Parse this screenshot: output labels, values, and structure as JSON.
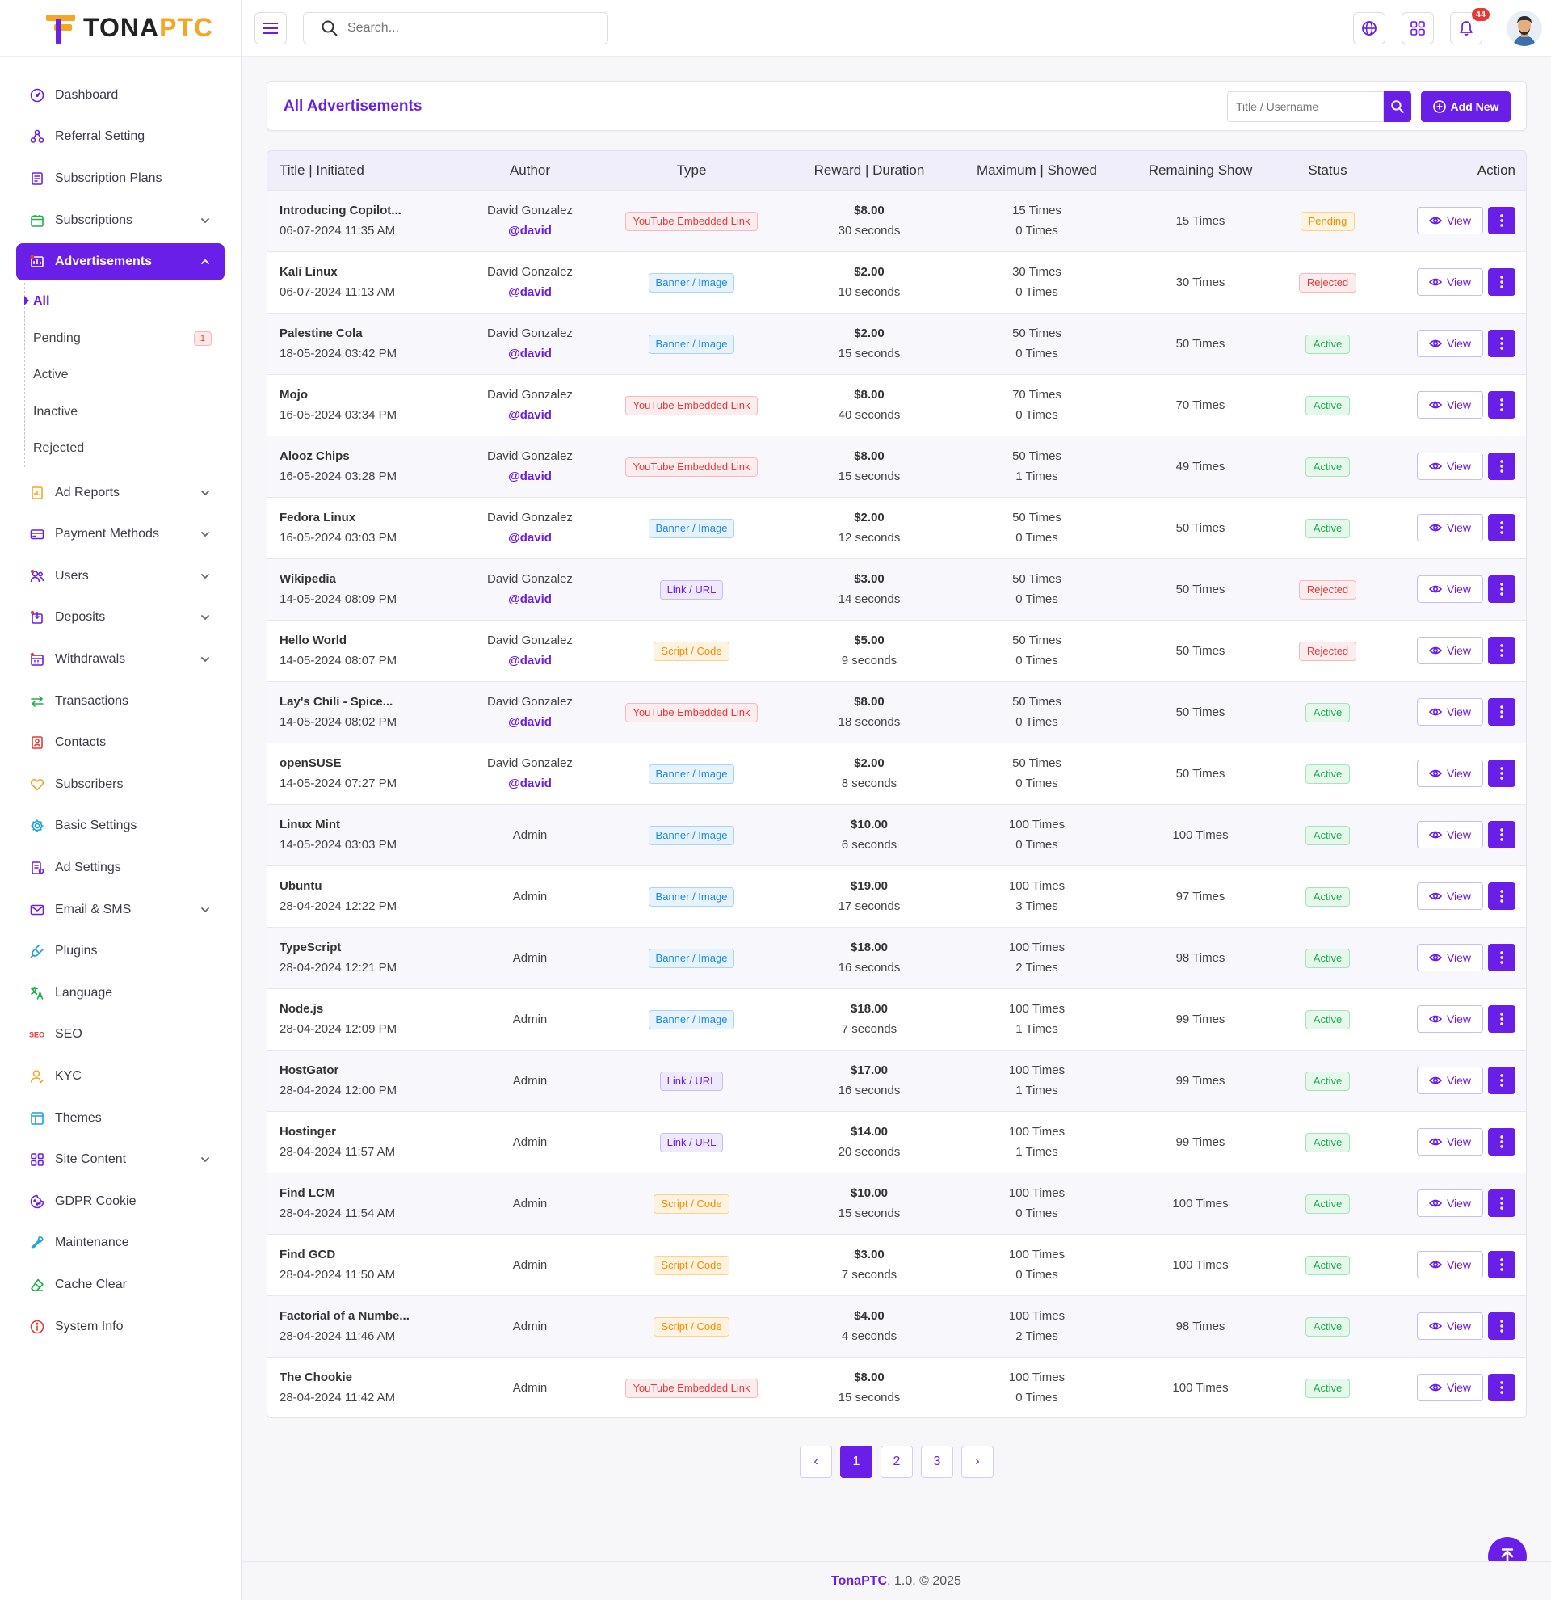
{
  "brand": {
    "logo_main": "TONA",
    "logo_accent": "PTC"
  },
  "sidebar": {
    "items": [
      {
        "label": "Dashboard",
        "icon": "dashboard-icon",
        "chevron": false
      },
      {
        "label": "Referral Setting",
        "icon": "referral-icon",
        "chevron": false
      },
      {
        "label": "Subscription Plans",
        "icon": "plans-icon",
        "chevron": false
      },
      {
        "label": "Subscriptions",
        "icon": "calendar-icon",
        "chevron": true
      }
    ],
    "active": {
      "label": "Advertisements",
      "icon": "ads-icon"
    },
    "submenu": [
      {
        "label": "All",
        "current": true,
        "badge": ""
      },
      {
        "label": "Pending",
        "current": false,
        "badge": "1"
      },
      {
        "label": "Active",
        "current": false,
        "badge": ""
      },
      {
        "label": "Inactive",
        "current": false,
        "badge": ""
      },
      {
        "label": "Rejected",
        "current": false,
        "badge": ""
      }
    ],
    "items_after": [
      {
        "label": "Ad Reports",
        "icon": "report-icon",
        "chevron": true
      },
      {
        "label": "Payment Methods",
        "icon": "card-icon",
        "chevron": true
      },
      {
        "label": "Users",
        "icon": "users-icon",
        "chevron": true
      },
      {
        "label": "Deposits",
        "icon": "deposit-icon",
        "chevron": true
      },
      {
        "label": "Withdrawals",
        "icon": "withdraw-icon",
        "chevron": true
      },
      {
        "label": "Transactions",
        "icon": "transfer-icon",
        "chevron": false
      },
      {
        "label": "Contacts",
        "icon": "contacts-icon",
        "chevron": false
      },
      {
        "label": "Subscribers",
        "icon": "heart-icon",
        "chevron": false
      },
      {
        "label": "Basic Settings",
        "icon": "gear-icon",
        "chevron": false
      },
      {
        "label": "Ad Settings",
        "icon": "ad-settings-icon",
        "chevron": false
      },
      {
        "label": "Email & SMS",
        "icon": "mail-icon",
        "chevron": true
      },
      {
        "label": "Plugins",
        "icon": "plug-icon",
        "chevron": false
      },
      {
        "label": "Language",
        "icon": "translate-icon",
        "chevron": false
      },
      {
        "label": "SEO",
        "icon": "seo-icon",
        "chevron": false
      },
      {
        "label": "KYC",
        "icon": "kyc-icon",
        "chevron": false
      },
      {
        "label": "Themes",
        "icon": "themes-icon",
        "chevron": false
      },
      {
        "label": "Site Content",
        "icon": "grid-icon",
        "chevron": true
      },
      {
        "label": "GDPR Cookie",
        "icon": "cookie-icon",
        "chevron": false
      },
      {
        "label": "Maintenance",
        "icon": "wrench-icon",
        "chevron": false
      },
      {
        "label": "Cache Clear",
        "icon": "eraser-icon",
        "chevron": false
      },
      {
        "label": "System Info",
        "icon": "info-icon",
        "chevron": false
      }
    ]
  },
  "topbar": {
    "search_placeholder": "Search...",
    "notification_count": "44"
  },
  "header": {
    "title": "All Advertisements",
    "filter_placeholder": "Title / Username",
    "add_label": "Add New"
  },
  "table": {
    "columns": [
      "Title | Initiated",
      "Author",
      "Type",
      "Reward | Duration",
      "Maximum | Showed",
      "Remaining Show",
      "Status",
      "Action"
    ],
    "view_label": "View",
    "rows": [
      {
        "title": "Introducing Copilot...",
        "date": "06-07-2024 11:35 AM",
        "author": "David Gonzalez",
        "handle": "@david",
        "type": "YouTube Embedded Link",
        "type_kind": "yt",
        "reward": "$8.00",
        "duration": "30 seconds",
        "max": "15 Times",
        "showed": "0 Times",
        "remaining": "15 Times",
        "status": "Pending",
        "status_kind": "pending"
      },
      {
        "title": "Kali Linux",
        "date": "06-07-2024 11:13 AM",
        "author": "David Gonzalez",
        "handle": "@david",
        "type": "Banner / Image",
        "type_kind": "banner",
        "reward": "$2.00",
        "duration": "10 seconds",
        "max": "30 Times",
        "showed": "0 Times",
        "remaining": "30 Times",
        "status": "Rejected",
        "status_kind": "rejected"
      },
      {
        "title": "Palestine Cola",
        "date": "18-05-2024 03:42 PM",
        "author": "David Gonzalez",
        "handle": "@david",
        "type": "Banner / Image",
        "type_kind": "banner",
        "reward": "$2.00",
        "duration": "15 seconds",
        "max": "50 Times",
        "showed": "0 Times",
        "remaining": "50 Times",
        "status": "Active",
        "status_kind": "active"
      },
      {
        "title": "Mojo",
        "date": "16-05-2024 03:34 PM",
        "author": "David Gonzalez",
        "handle": "@david",
        "type": "YouTube Embedded Link",
        "type_kind": "yt",
        "reward": "$8.00",
        "duration": "40 seconds",
        "max": "70 Times",
        "showed": "0 Times",
        "remaining": "70 Times",
        "status": "Active",
        "status_kind": "active"
      },
      {
        "title": "Alooz Chips",
        "date": "16-05-2024 03:28 PM",
        "author": "David Gonzalez",
        "handle": "@david",
        "type": "YouTube Embedded Link",
        "type_kind": "yt",
        "reward": "$8.00",
        "duration": "15 seconds",
        "max": "50 Times",
        "showed": "1 Times",
        "remaining": "49 Times",
        "status": "Active",
        "status_kind": "active"
      },
      {
        "title": "Fedora Linux",
        "date": "16-05-2024 03:03 PM",
        "author": "David Gonzalez",
        "handle": "@david",
        "type": "Banner / Image",
        "type_kind": "banner",
        "reward": "$2.00",
        "duration": "12 seconds",
        "max": "50 Times",
        "showed": "0 Times",
        "remaining": "50 Times",
        "status": "Active",
        "status_kind": "active"
      },
      {
        "title": "Wikipedia",
        "date": "14-05-2024 08:09 PM",
        "author": "David Gonzalez",
        "handle": "@david",
        "type": "Link / URL",
        "type_kind": "link",
        "reward": "$3.00",
        "duration": "14 seconds",
        "max": "50 Times",
        "showed": "0 Times",
        "remaining": "50 Times",
        "status": "Rejected",
        "status_kind": "rejected"
      },
      {
        "title": "Hello World",
        "date": "14-05-2024 08:07 PM",
        "author": "David Gonzalez",
        "handle": "@david",
        "type": "Script / Code",
        "type_kind": "script",
        "reward": "$5.00",
        "duration": "9 seconds",
        "max": "50 Times",
        "showed": "0 Times",
        "remaining": "50 Times",
        "status": "Rejected",
        "status_kind": "rejected"
      },
      {
        "title": "Lay's Chili - Spice...",
        "date": "14-05-2024 08:02 PM",
        "author": "David Gonzalez",
        "handle": "@david",
        "type": "YouTube Embedded Link",
        "type_kind": "yt",
        "reward": "$8.00",
        "duration": "18 seconds",
        "max": "50 Times",
        "showed": "0 Times",
        "remaining": "50 Times",
        "status": "Active",
        "status_kind": "active"
      },
      {
        "title": "openSUSE",
        "date": "14-05-2024 07:27 PM",
        "author": "David Gonzalez",
        "handle": "@david",
        "type": "Banner / Image",
        "type_kind": "banner",
        "reward": "$2.00",
        "duration": "8 seconds",
        "max": "50 Times",
        "showed": "0 Times",
        "remaining": "50 Times",
        "status": "Active",
        "status_kind": "active"
      },
      {
        "title": "Linux Mint",
        "date": "14-05-2024 03:03 PM",
        "author": "Admin",
        "handle": "",
        "type": "Banner / Image",
        "type_kind": "banner",
        "reward": "$10.00",
        "duration": "6 seconds",
        "max": "100 Times",
        "showed": "0 Times",
        "remaining": "100 Times",
        "status": "Active",
        "status_kind": "active"
      },
      {
        "title": "Ubuntu",
        "date": "28-04-2024 12:22 PM",
        "author": "Admin",
        "handle": "",
        "type": "Banner / Image",
        "type_kind": "banner",
        "reward": "$19.00",
        "duration": "17 seconds",
        "max": "100 Times",
        "showed": "3 Times",
        "remaining": "97 Times",
        "status": "Active",
        "status_kind": "active"
      },
      {
        "title": "TypeScript",
        "date": "28-04-2024 12:21 PM",
        "author": "Admin",
        "handle": "",
        "type": "Banner / Image",
        "type_kind": "banner",
        "reward": "$18.00",
        "duration": "16 seconds",
        "max": "100 Times",
        "showed": "2 Times",
        "remaining": "98 Times",
        "status": "Active",
        "status_kind": "active"
      },
      {
        "title": "Node.js",
        "date": "28-04-2024 12:09 PM",
        "author": "Admin",
        "handle": "",
        "type": "Banner / Image",
        "type_kind": "banner",
        "reward": "$18.00",
        "duration": "7 seconds",
        "max": "100 Times",
        "showed": "1 Times",
        "remaining": "99 Times",
        "status": "Active",
        "status_kind": "active"
      },
      {
        "title": "HostGator",
        "date": "28-04-2024 12:00 PM",
        "author": "Admin",
        "handle": "",
        "type": "Link / URL",
        "type_kind": "link",
        "reward": "$17.00",
        "duration": "16 seconds",
        "max": "100 Times",
        "showed": "1 Times",
        "remaining": "99 Times",
        "status": "Active",
        "status_kind": "active"
      },
      {
        "title": "Hostinger",
        "date": "28-04-2024 11:57 AM",
        "author": "Admin",
        "handle": "",
        "type": "Link / URL",
        "type_kind": "link",
        "reward": "$14.00",
        "duration": "20 seconds",
        "max": "100 Times",
        "showed": "1 Times",
        "remaining": "99 Times",
        "status": "Active",
        "status_kind": "active"
      },
      {
        "title": "Find LCM",
        "date": "28-04-2024 11:54 AM",
        "author": "Admin",
        "handle": "",
        "type": "Script / Code",
        "type_kind": "script",
        "reward": "$10.00",
        "duration": "15 seconds",
        "max": "100 Times",
        "showed": "0 Times",
        "remaining": "100 Times",
        "status": "Active",
        "status_kind": "active"
      },
      {
        "title": "Find GCD",
        "date": "28-04-2024 11:50 AM",
        "author": "Admin",
        "handle": "",
        "type": "Script / Code",
        "type_kind": "script",
        "reward": "$3.00",
        "duration": "7 seconds",
        "max": "100 Times",
        "showed": "0 Times",
        "remaining": "100 Times",
        "status": "Active",
        "status_kind": "active"
      },
      {
        "title": "Factorial of a Numbe...",
        "date": "28-04-2024 11:46 AM",
        "author": "Admin",
        "handle": "",
        "type": "Script / Code",
        "type_kind": "script",
        "reward": "$4.00",
        "duration": "4 seconds",
        "max": "100 Times",
        "showed": "2 Times",
        "remaining": "98 Times",
        "status": "Active",
        "status_kind": "active"
      },
      {
        "title": "The Chookie",
        "date": "28-04-2024 11:42 AM",
        "author": "Admin",
        "handle": "",
        "type": "YouTube Embedded Link",
        "type_kind": "yt",
        "reward": "$8.00",
        "duration": "15 seconds",
        "max": "100 Times",
        "showed": "0 Times",
        "remaining": "100 Times",
        "status": "Active",
        "status_kind": "active"
      }
    ]
  },
  "pagination": {
    "prev": "‹",
    "next": "›",
    "pages": [
      "1",
      "2",
      "3"
    ],
    "current": "1"
  },
  "footer": {
    "brand": "TonaPTC",
    "rest": ", 1.0, © 2025"
  },
  "colors": {
    "accent": "#6a1fe8",
    "brand_orange": "#f5a623"
  }
}
